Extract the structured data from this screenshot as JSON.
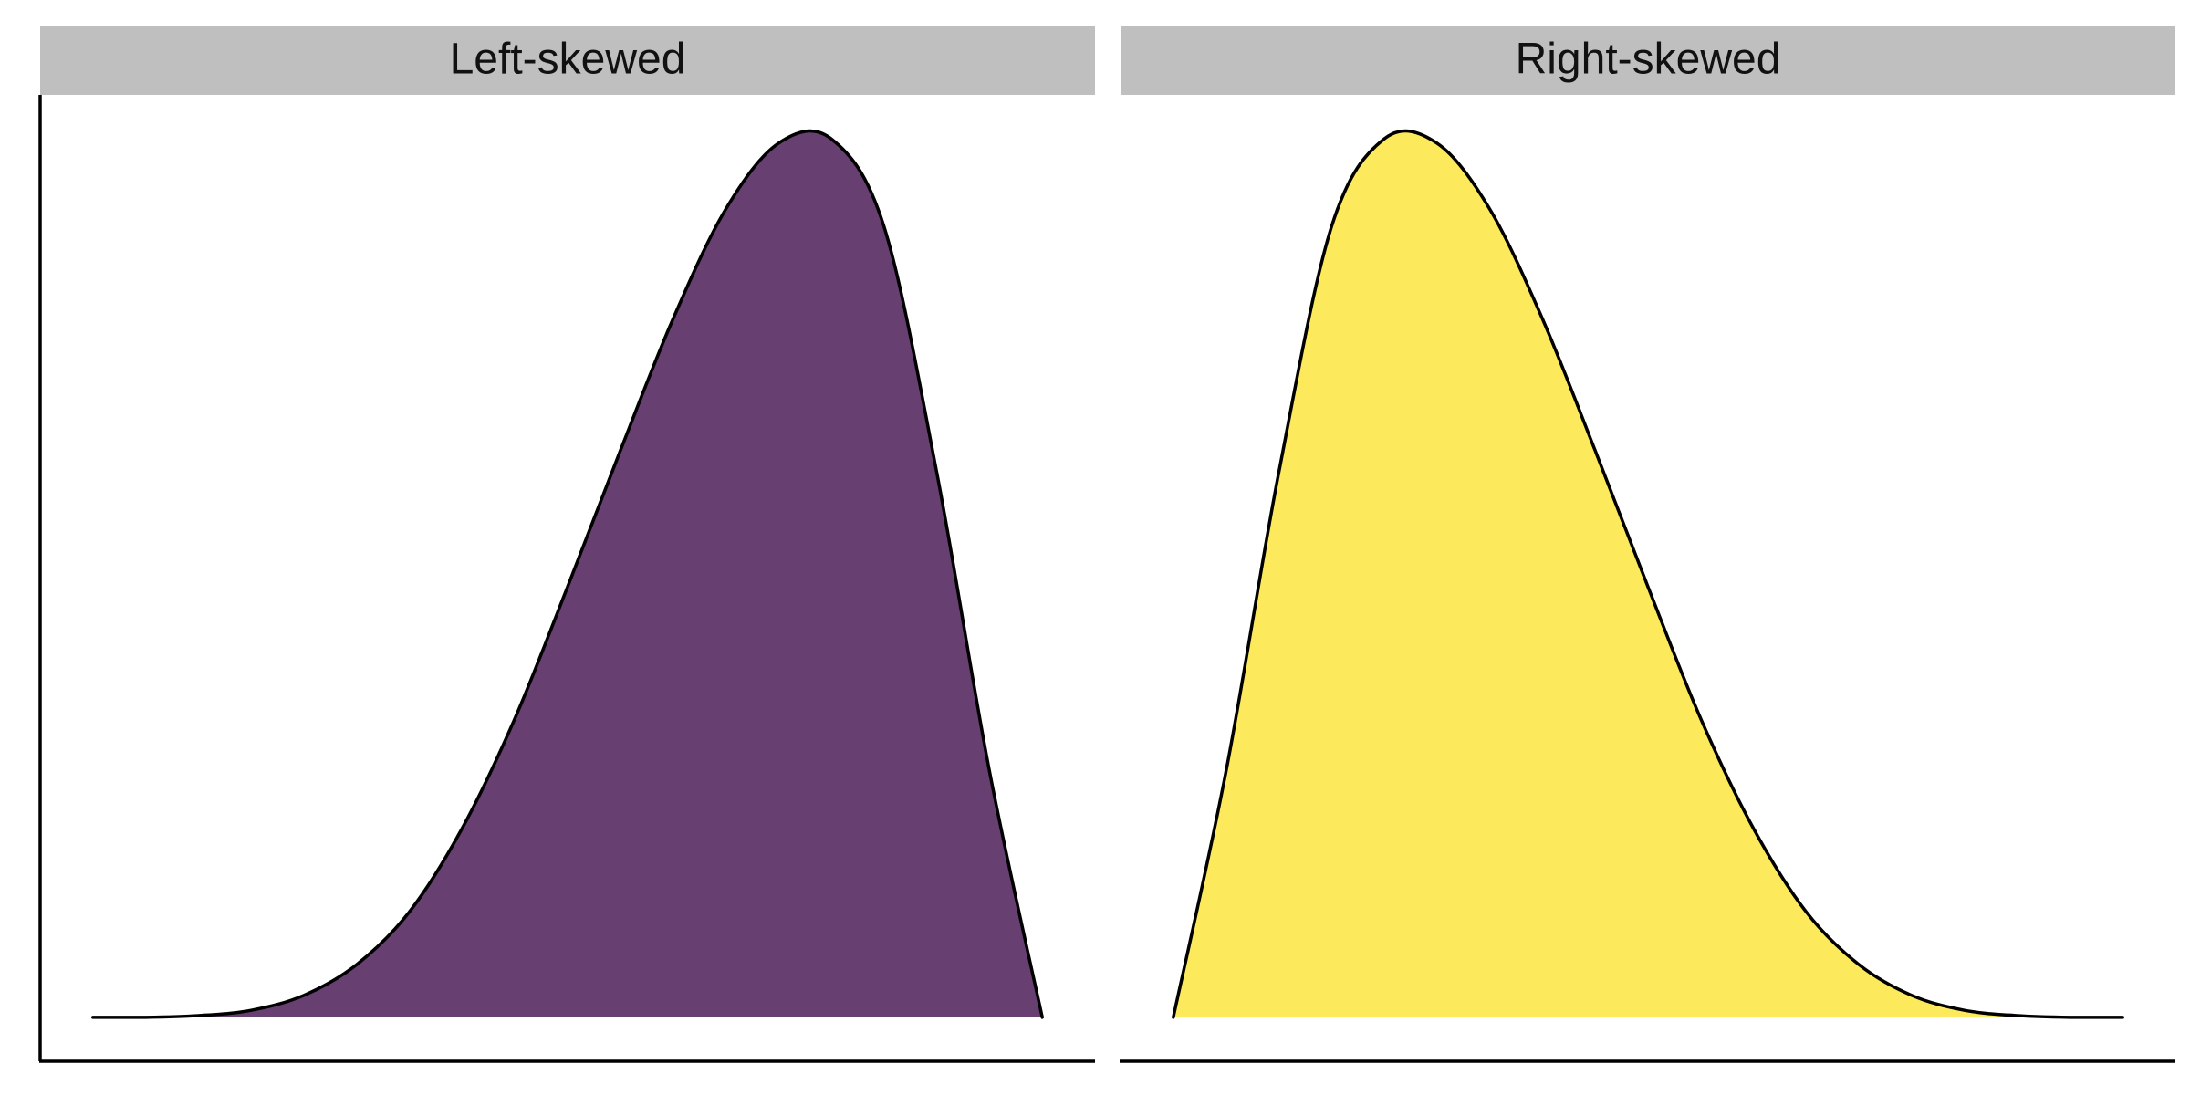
{
  "chart_data": [
    {
      "type": "area",
      "panel_title": "Left-skewed",
      "fill_color": "#673f70",
      "line_color": "#000000",
      "xlim": [
        0.5,
        1.5
      ],
      "ylim": [
        0,
        1
      ],
      "x": [
        0.55,
        0.6,
        0.65,
        0.7,
        0.75,
        0.8,
        0.85,
        0.9,
        0.95,
        1.0,
        1.05,
        1.1,
        1.15,
        1.2,
        1.25,
        1.3,
        1.35,
        1.4,
        1.45
      ],
      "y": [
        0.0,
        0.0,
        0.002,
        0.008,
        0.025,
        0.06,
        0.12,
        0.215,
        0.34,
        0.49,
        0.645,
        0.795,
        0.92,
        0.995,
        1.0,
        0.9,
        0.62,
        0.28,
        0.0
      ],
      "x_ticks_shown": false,
      "y_ticks_shown": false,
      "grid": false
    },
    {
      "type": "area",
      "panel_title": "Right-skewed",
      "fill_color": "#fde95c",
      "line_color": "#000000",
      "xlim": [
        0.5,
        1.5
      ],
      "ylim": [
        0,
        1
      ],
      "x": [
        0.55,
        0.6,
        0.65,
        0.7,
        0.75,
        0.8,
        0.85,
        0.9,
        0.95,
        1.0,
        1.05,
        1.1,
        1.15,
        1.2,
        1.25,
        1.3,
        1.35,
        1.4,
        1.45
      ],
      "y": [
        0.0,
        0.28,
        0.62,
        0.9,
        1.0,
        0.995,
        0.92,
        0.795,
        0.645,
        0.49,
        0.34,
        0.215,
        0.12,
        0.06,
        0.025,
        0.008,
        0.002,
        0.0,
        0.0
      ],
      "x_ticks_shown": false,
      "y_ticks_shown": false,
      "grid": false
    }
  ]
}
